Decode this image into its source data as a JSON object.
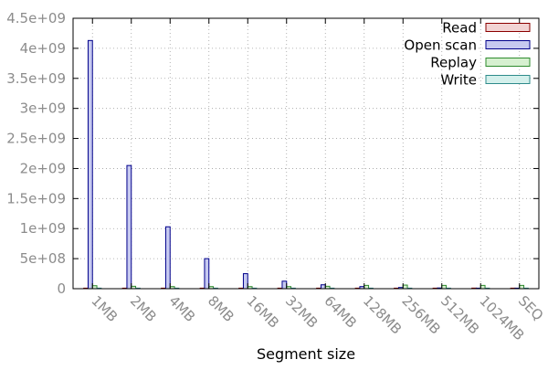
{
  "chart_data": {
    "type": "bar",
    "title": "",
    "xlabel": "Segment size",
    "ylabel": "",
    "ylim": [
      0,
      4500000000
    ],
    "y_ticks": [
      0,
      500000000,
      1000000000,
      1500000000,
      2000000000,
      2500000000,
      3000000000,
      3500000000,
      4000000000,
      4500000000
    ],
    "y_tick_labels": [
      "0",
      "5e+08",
      "1e+09",
      "1.5e+09",
      "2e+09",
      "2.5e+09",
      "3e+09",
      "3.5e+09",
      "4e+09",
      "4.5e+09"
    ],
    "grid": true,
    "legend_position": "top-right",
    "categories": [
      "1MB",
      "2MB",
      "4MB",
      "8MB",
      "16MB",
      "32MB",
      "64MB",
      "128MB",
      "256MB",
      "512MB",
      "1024MB",
      "SEQ"
    ],
    "series": [
      {
        "name": "Read",
        "fill": "#f2d4d4",
        "stroke": "#8b0000",
        "values": [
          0,
          0,
          0,
          0,
          0,
          0,
          0,
          0,
          0,
          0,
          10000000,
          0
        ]
      },
      {
        "name": "Open scan",
        "fill": "#c6c9f0",
        "stroke": "#00008b",
        "values": [
          4130000000,
          2050000000,
          1030000000,
          500000000,
          250000000,
          125000000,
          65000000,
          35000000,
          20000000,
          12000000,
          8000000,
          0
        ]
      },
      {
        "name": "Replay",
        "fill": "#d6f0d0",
        "stroke": "#2e8b2e",
        "values": [
          50000000,
          40000000,
          35000000,
          35000000,
          35000000,
          35000000,
          40000000,
          55000000,
          60000000,
          55000000,
          55000000,
          55000000
        ]
      },
      {
        "name": "Write",
        "fill": "#d4f0ec",
        "stroke": "#2e8b8b",
        "values": [
          0,
          0,
          0,
          0,
          0,
          0,
          0,
          0,
          0,
          0,
          0,
          0
        ]
      }
    ]
  }
}
